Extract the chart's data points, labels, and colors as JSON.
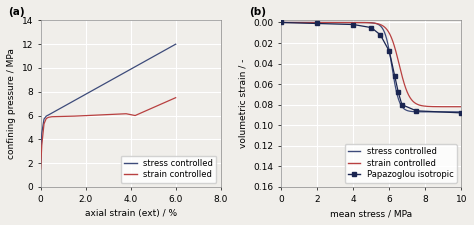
{
  "panel_a": {
    "title": "(a)",
    "xlabel": "axial strain (ext) / %",
    "ylabel": "confining pressure / MPa",
    "xlim": [
      0,
      8.0
    ],
    "ylim": [
      0,
      14
    ],
    "xticks": [
      0,
      2.0,
      4.0,
      6.0,
      8.0
    ],
    "xtick_labels": [
      "0",
      "2.0",
      "4.0",
      "6.0",
      "8.0"
    ],
    "yticks": [
      0,
      2,
      4,
      6,
      8,
      10,
      12,
      14
    ],
    "ytick_labels": [
      "0",
      "2",
      "4",
      "6",
      "8",
      "10",
      "12",
      "14"
    ],
    "stress_color": "#3d4b7a",
    "strain_color": "#b84040",
    "legend_labels": [
      "stress controlled",
      "strain controlled"
    ]
  },
  "panel_b": {
    "title": "(b)",
    "xlabel": "mean stress / MPa",
    "ylabel": "volumetric strain / -",
    "xlim": [
      0,
      10
    ],
    "ylim": [
      0.16,
      -0.002
    ],
    "xticks": [
      0,
      2,
      4,
      6,
      8,
      10
    ],
    "xtick_labels": [
      "0",
      "2",
      "4",
      "6",
      "8",
      "10"
    ],
    "yticks": [
      0.0,
      0.02,
      0.04,
      0.06,
      0.08,
      0.1,
      0.12,
      0.14,
      0.16
    ],
    "ytick_labels": [
      "0.00",
      "0.02",
      "0.04",
      "0.06",
      "0.08",
      "0.10",
      "0.12",
      "0.14",
      "0.16"
    ],
    "stress_color": "#3d4b7a",
    "strain_color": "#b84040",
    "papazoglou_color": "#1a2550",
    "legend_labels": [
      "stress controlled",
      "strain controlled",
      "Papazoglou isotropic"
    ]
  },
  "background_color": "#f0eeea",
  "grid_color": "#ffffff",
  "font_size": 6.5
}
